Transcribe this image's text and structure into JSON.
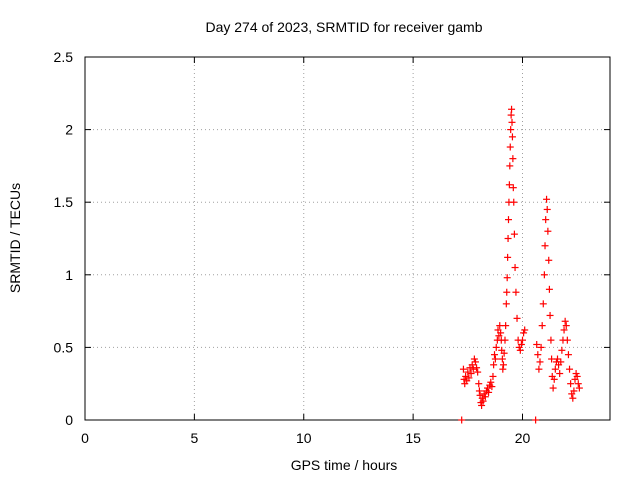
{
  "chart_data": {
    "type": "scatter",
    "title": "Day 274 of 2023, SRMTID for receiver gamb",
    "xlabel": "GPS time / hours",
    "ylabel": "SRMTID / TECUs",
    "xlim": [
      0,
      24
    ],
    "ylim": [
      0,
      2.5
    ],
    "xticks": [
      0,
      5,
      10,
      15,
      20
    ],
    "yticks": [
      0,
      0.5,
      1,
      1.5,
      2,
      2.5
    ],
    "xtick_labels": [
      "0",
      "5",
      "10",
      "15",
      "20"
    ],
    "ytick_labels": [
      "0",
      "0.5",
      "1",
      "1.5",
      "2",
      "2.5"
    ],
    "grid": true,
    "marker": "plus",
    "color": "#ff0000",
    "series": [
      {
        "name": "SRMTID",
        "points": [
          [
            17.22,
            0.0
          ],
          [
            17.3,
            0.35
          ],
          [
            17.33,
            0.28
          ],
          [
            17.36,
            0.25
          ],
          [
            17.4,
            0.3
          ],
          [
            17.45,
            0.27
          ],
          [
            17.5,
            0.33
          ],
          [
            17.55,
            0.29
          ],
          [
            17.6,
            0.36
          ],
          [
            17.65,
            0.32
          ],
          [
            17.7,
            0.38
          ],
          [
            17.75,
            0.35
          ],
          [
            17.8,
            0.42
          ],
          [
            17.85,
            0.4
          ],
          [
            17.9,
            0.36
          ],
          [
            17.95,
            0.33
          ],
          [
            18.0,
            0.25
          ],
          [
            18.03,
            0.2
          ],
          [
            18.06,
            0.17
          ],
          [
            18.1,
            0.12
          ],
          [
            18.13,
            0.1
          ],
          [
            18.16,
            0.15
          ],
          [
            18.2,
            0.13
          ],
          [
            18.25,
            0.18
          ],
          [
            18.3,
            0.16
          ],
          [
            18.35,
            0.2
          ],
          [
            18.4,
            0.22
          ],
          [
            18.45,
            0.19
          ],
          [
            18.5,
            0.24
          ],
          [
            18.55,
            0.26
          ],
          [
            18.6,
            0.23
          ],
          [
            18.65,
            0.3
          ],
          [
            18.68,
            0.38
          ],
          [
            18.72,
            0.45
          ],
          [
            18.76,
            0.42
          ],
          [
            18.8,
            0.5
          ],
          [
            18.85,
            0.55
          ],
          [
            18.88,
            0.62
          ],
          [
            18.92,
            0.58
          ],
          [
            18.96,
            0.65
          ],
          [
            19.0,
            0.6
          ],
          [
            19.03,
            0.55
          ],
          [
            19.05,
            0.48
          ],
          [
            19.08,
            0.42
          ],
          [
            19.1,
            0.35
          ],
          [
            19.13,
            0.38
          ],
          [
            19.16,
            0.46
          ],
          [
            19.2,
            0.55
          ],
          [
            19.23,
            0.65
          ],
          [
            19.26,
            0.8
          ],
          [
            19.28,
            0.88
          ],
          [
            19.3,
            0.98
          ],
          [
            19.32,
            1.12
          ],
          [
            19.34,
            1.25
          ],
          [
            19.36,
            1.38
          ],
          [
            19.38,
            1.5
          ],
          [
            19.4,
            1.62
          ],
          [
            19.42,
            1.75
          ],
          [
            19.44,
            1.88
          ],
          [
            19.46,
            2.0
          ],
          [
            19.48,
            2.1
          ],
          [
            19.5,
            2.14
          ],
          [
            19.52,
            2.05
          ],
          [
            19.54,
            1.95
          ],
          [
            19.56,
            1.8
          ],
          [
            19.58,
            1.6
          ],
          [
            19.6,
            1.5
          ],
          [
            19.63,
            1.28
          ],
          [
            19.66,
            1.05
          ],
          [
            19.7,
            0.88
          ],
          [
            19.75,
            0.7
          ],
          [
            19.8,
            0.55
          ],
          [
            19.85,
            0.5
          ],
          [
            19.9,
            0.48
          ],
          [
            19.95,
            0.52
          ],
          [
            20.0,
            0.55
          ],
          [
            20.05,
            0.6
          ],
          [
            20.1,
            0.62
          ],
          [
            20.6,
            0.0
          ],
          [
            20.65,
            0.52
          ],
          [
            20.7,
            0.45
          ],
          [
            20.75,
            0.35
          ],
          [
            20.8,
            0.4
          ],
          [
            20.85,
            0.5
          ],
          [
            20.9,
            0.65
          ],
          [
            20.95,
            0.8
          ],
          [
            21.0,
            1.0
          ],
          [
            21.03,
            1.2
          ],
          [
            21.06,
            1.38
          ],
          [
            21.1,
            1.52
          ],
          [
            21.13,
            1.45
          ],
          [
            21.16,
            1.3
          ],
          [
            21.2,
            1.1
          ],
          [
            21.23,
            0.9
          ],
          [
            21.26,
            0.72
          ],
          [
            21.3,
            0.55
          ],
          [
            21.33,
            0.42
          ],
          [
            21.36,
            0.3
          ],
          [
            21.4,
            0.22
          ],
          [
            21.45,
            0.28
          ],
          [
            21.5,
            0.35
          ],
          [
            21.55,
            0.4
          ],
          [
            21.6,
            0.42
          ],
          [
            21.65,
            0.38
          ],
          [
            21.7,
            0.32
          ],
          [
            21.75,
            0.4
          ],
          [
            21.8,
            0.48
          ],
          [
            21.85,
            0.55
          ],
          [
            21.9,
            0.62
          ],
          [
            21.95,
            0.68
          ],
          [
            22.0,
            0.65
          ],
          [
            22.05,
            0.55
          ],
          [
            22.1,
            0.45
          ],
          [
            22.15,
            0.35
          ],
          [
            22.2,
            0.25
          ],
          [
            22.25,
            0.18
          ],
          [
            22.3,
            0.15
          ],
          [
            22.35,
            0.2
          ],
          [
            22.4,
            0.28
          ],
          [
            22.45,
            0.32
          ],
          [
            22.5,
            0.3
          ],
          [
            22.55,
            0.25
          ],
          [
            22.6,
            0.22
          ]
        ]
      }
    ]
  }
}
